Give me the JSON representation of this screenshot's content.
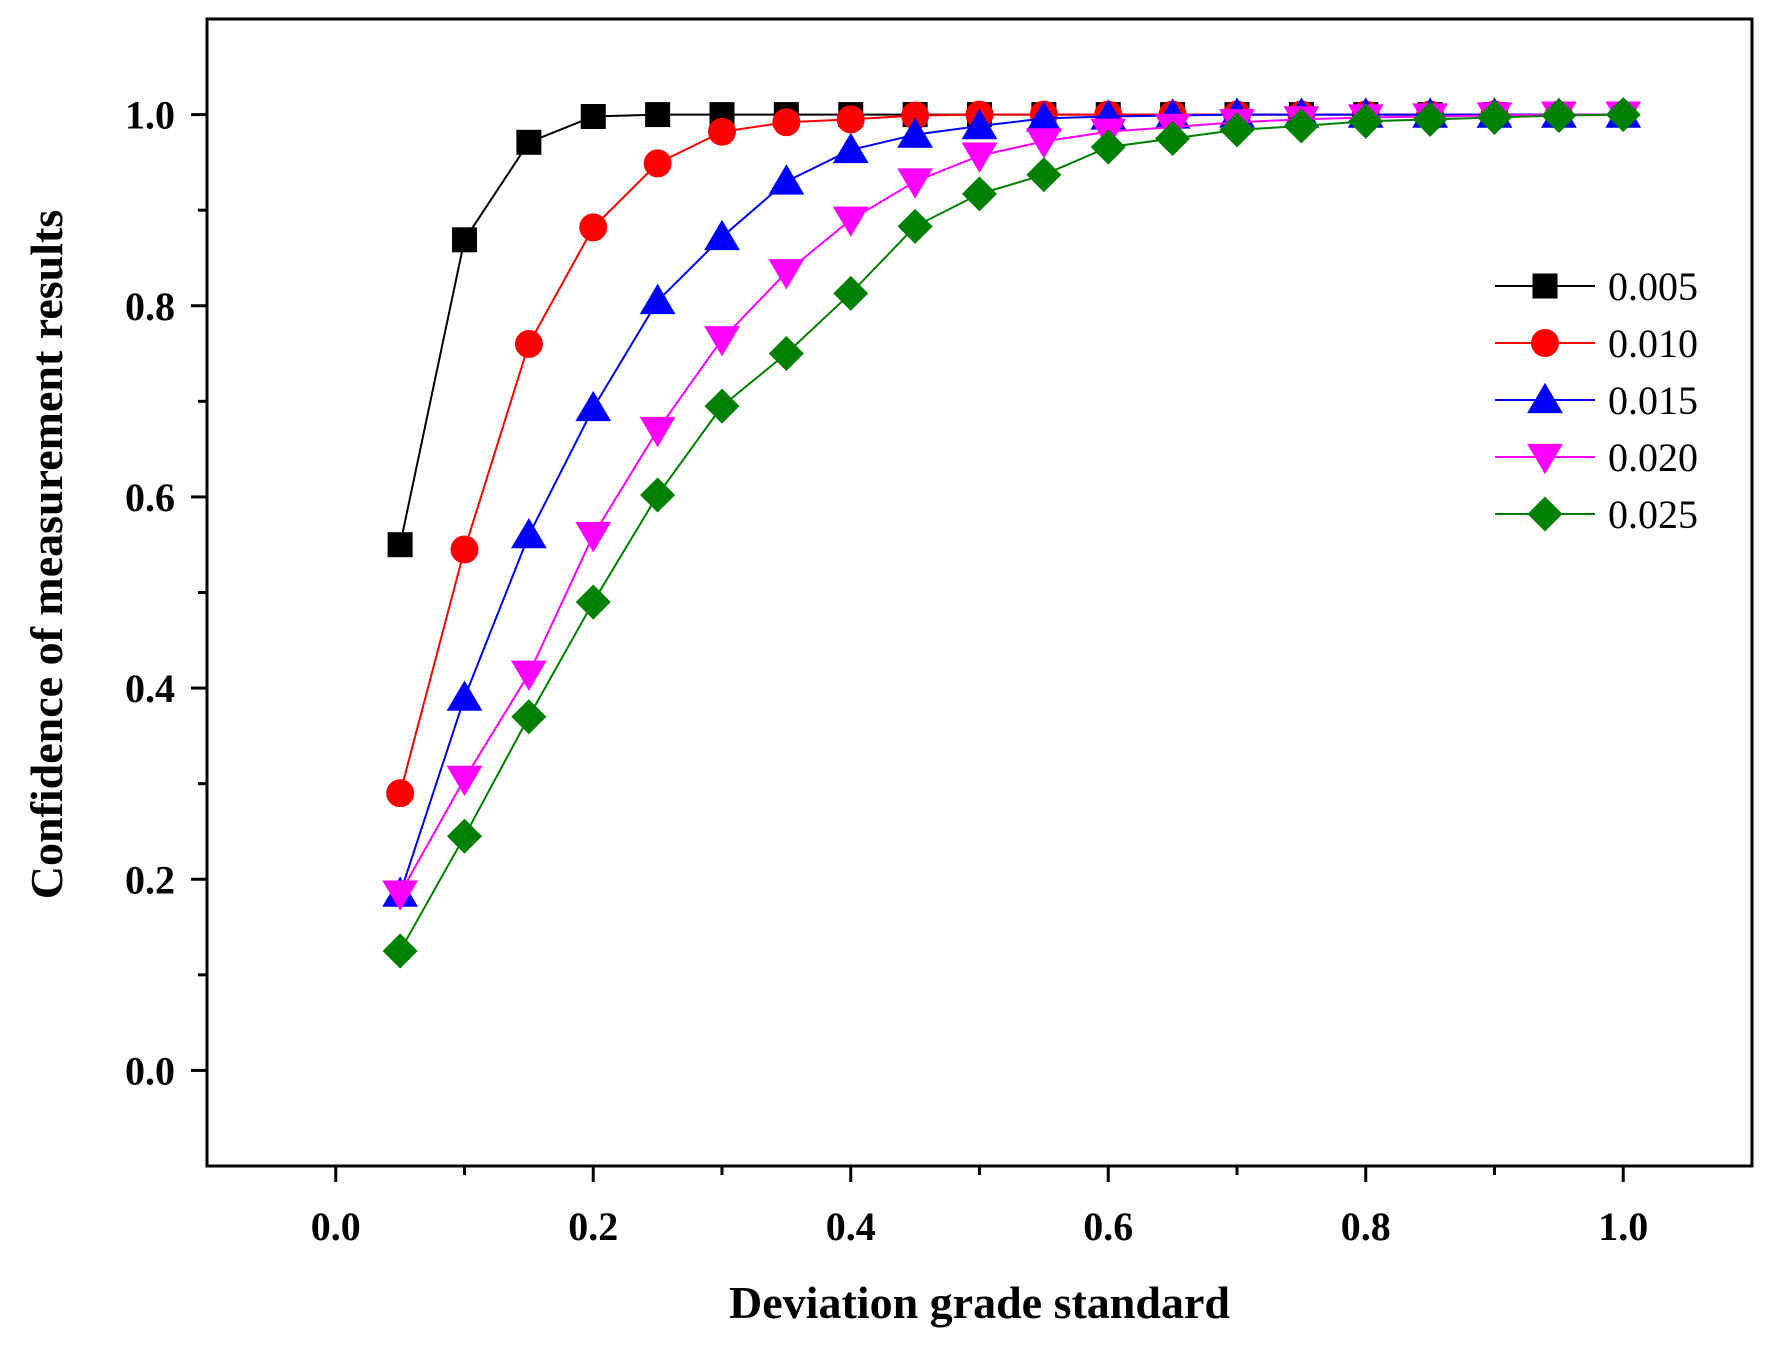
{
  "chart_data": {
    "type": "line",
    "title": "",
    "xlabel": "Deviation grade standard",
    "ylabel": "Confidence of measurement results",
    "xlim": [
      -0.1,
      1.1
    ],
    "ylim": [
      -0.1,
      1.1
    ],
    "xticks": [
      0.0,
      0.2,
      0.4,
      0.6,
      0.8,
      1.0
    ],
    "xtick_labels": [
      "0.0",
      "0.2",
      "0.4",
      "0.6",
      "0.8",
      "1.0"
    ],
    "yticks": [
      0.0,
      0.2,
      0.4,
      0.6,
      0.8,
      1.0
    ],
    "ytick_labels": [
      "0.0",
      "0.2",
      "0.4",
      "0.6",
      "0.8",
      "1.0"
    ],
    "grid": false,
    "legend_position": "center-right",
    "x": [
      0.05,
      0.1,
      0.15,
      0.2,
      0.25,
      0.3,
      0.35,
      0.4,
      0.45,
      0.5,
      0.55,
      0.6,
      0.65,
      0.7,
      0.75,
      0.8,
      0.85,
      0.9,
      0.95,
      1.0
    ],
    "series": [
      {
        "name": "0.005",
        "color": "#000000",
        "marker": "square",
        "values": [
          0.55,
          0.869,
          0.971,
          0.998,
          1.0,
          1.0,
          1.0,
          1.0,
          1.0,
          1.0,
          1.0,
          1.0,
          1.0,
          1.0,
          1.0,
          1.0,
          1.0,
          1.0,
          1.0,
          1.0
        ]
      },
      {
        "name": "0.010",
        "color": "#ff0000",
        "marker": "circle",
        "values": [
          0.29,
          0.545,
          0.76,
          0.882,
          0.949,
          0.982,
          0.992,
          0.995,
          0.999,
          1.0,
          1.0,
          1.0,
          1.0,
          1.0,
          1.0,
          1.0,
          1.0,
          1.0,
          1.0,
          1.0
        ]
      },
      {
        "name": "0.015",
        "color": "#0000ff",
        "marker": "triangle-up",
        "values": [
          0.185,
          0.39,
          0.56,
          0.693,
          0.805,
          0.872,
          0.93,
          0.963,
          0.979,
          0.988,
          0.996,
          0.998,
          0.999,
          1.0,
          1.0,
          1.0,
          1.0,
          1.0,
          1.0,
          1.0
        ]
      },
      {
        "name": "0.020",
        "color": "#ff00ff",
        "marker": "triangle-down",
        "values": [
          0.185,
          0.305,
          0.415,
          0.56,
          0.67,
          0.765,
          0.835,
          0.89,
          0.93,
          0.957,
          0.972,
          0.982,
          0.987,
          0.992,
          0.995,
          0.997,
          0.998,
          0.999,
          1.0,
          1.0
        ]
      },
      {
        "name": "0.025",
        "color": "#008000",
        "marker": "diamond",
        "values": [
          0.125,
          0.245,
          0.37,
          0.49,
          0.602,
          0.695,
          0.75,
          0.813,
          0.883,
          0.917,
          0.937,
          0.966,
          0.975,
          0.984,
          0.988,
          0.993,
          0.995,
          0.997,
          0.999,
          1.0
        ]
      }
    ]
  }
}
